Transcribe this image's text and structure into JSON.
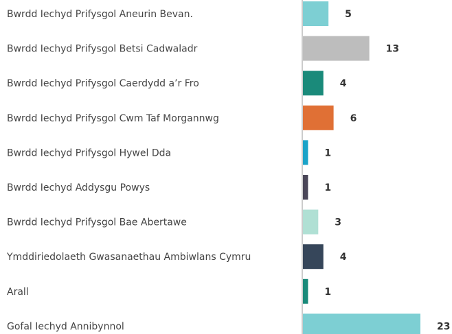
{
  "chart_data": {
    "type": "bar",
    "orientation": "horizontal",
    "categories": [
      "Bwrdd Iechyd Prifysgol Aneurin Bevan.",
      "Bwrdd Iechyd Prifysgol Betsi Cadwaladr",
      "Bwrdd Iechyd Prifysgol Caerdydd a’r Fro",
      "Bwrdd Iechyd Prifysgol Cwm Taf Morgannwg",
      "Bwrdd Iechyd Prifysgol Hywel Dda",
      "Bwrdd Iechyd Addysgu Powys",
      "Bwrdd Iechyd Prifysgol Bae Abertawe",
      "Ymddiriedolaeth Gwasanaethau Ambiwlans Cymru",
      "Arall",
      "Gofal Iechyd Annibynnol"
    ],
    "values": [
      5,
      13,
      4,
      6,
      1,
      1,
      3,
      4,
      1,
      23
    ],
    "colors": [
      "#7dcfd3",
      "#bdbdbd",
      "#1a8a7a",
      "#e07035",
      "#1aa3c8",
      "#4a4658",
      "#b0e0d4",
      "#36465a",
      "#1a8a7a",
      "#7dcfd3"
    ],
    "xlim": [
      0,
      23
    ]
  }
}
